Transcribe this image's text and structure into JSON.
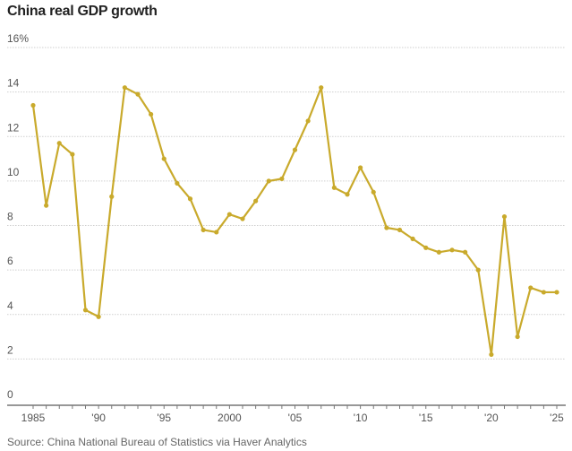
{
  "chart_data": {
    "type": "line",
    "title": "China real GDP growth",
    "source": "Source: China National Bureau of Statistics via Haver Analytics",
    "xlabel": "",
    "ylabel": "",
    "ylim": [
      0,
      16
    ],
    "xlim": [
      1985,
      2025
    ],
    "grid": true,
    "y_ticks": [
      {
        "value": 0,
        "label": "0"
      },
      {
        "value": 2,
        "label": "2"
      },
      {
        "value": 4,
        "label": "4"
      },
      {
        "value": 6,
        "label": "6"
      },
      {
        "value": 8,
        "label": "8"
      },
      {
        "value": 10,
        "label": "10"
      },
      {
        "value": 12,
        "label": "12"
      },
      {
        "value": 14,
        "label": "14"
      },
      {
        "value": 16,
        "label": "16%"
      }
    ],
    "x_ticks": [
      {
        "value": 1985,
        "label": "1985"
      },
      {
        "value": 1990,
        "label": "'90"
      },
      {
        "value": 1995,
        "label": "'95"
      },
      {
        "value": 2000,
        "label": "2000"
      },
      {
        "value": 2005,
        "label": "'05"
      },
      {
        "value": 2010,
        "label": "'10"
      },
      {
        "value": 2015,
        "label": "'15"
      },
      {
        "value": 2020,
        "label": "'20"
      },
      {
        "value": 2025,
        "label": "'25"
      }
    ],
    "series": [
      {
        "name": "Real GDP growth",
        "color": "#c9aa2c",
        "x": [
          1985,
          1986,
          1987,
          1988,
          1989,
          1990,
          1991,
          1992,
          1993,
          1994,
          1995,
          1996,
          1997,
          1998,
          1999,
          2000,
          2001,
          2002,
          2003,
          2004,
          2005,
          2006,
          2007,
          2008,
          2009,
          2010,
          2011,
          2012,
          2013,
          2014,
          2015,
          2016,
          2017,
          2018,
          2019,
          2020,
          2021,
          2022,
          2023,
          2024,
          2025
        ],
        "values": [
          13.4,
          8.9,
          11.7,
          11.2,
          4.2,
          3.9,
          9.3,
          14.2,
          13.9,
          13.0,
          11.0,
          9.9,
          9.2,
          7.8,
          7.7,
          8.5,
          8.3,
          9.1,
          10.0,
          10.1,
          11.4,
          12.7,
          14.2,
          9.7,
          9.4,
          10.6,
          9.5,
          7.9,
          7.8,
          7.4,
          7.0,
          6.8,
          6.9,
          6.8,
          6.0,
          2.2,
          8.4,
          3.0,
          5.2,
          5.0,
          5.0
        ]
      }
    ]
  }
}
